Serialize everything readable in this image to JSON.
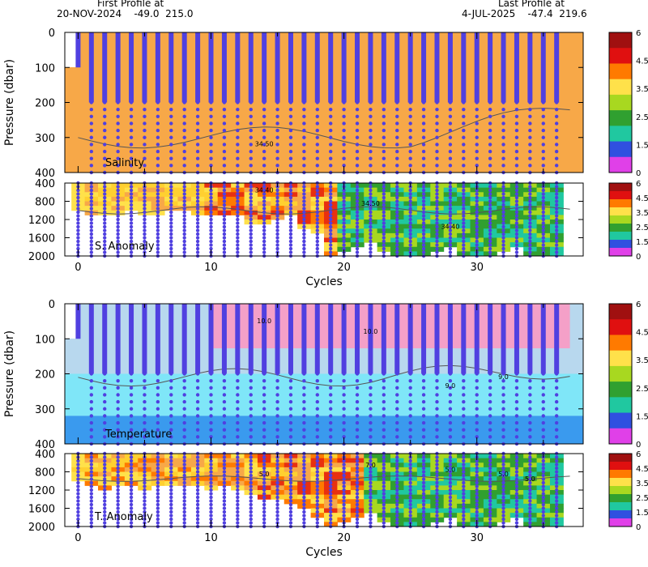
{
  "header": {
    "first_label": "First Profile at",
    "first_value": "20-NOV-2024    -49.0  215.0",
    "last_label": "Last Profile at",
    "last_value": "4-JUL-2025    -47.4  219.6"
  },
  "colors": {
    "salinity_fill": "#f7a848",
    "temp_surface": "#f4a0c8",
    "temp_mid": "#b8d8ee",
    "temp_deep": "#7fe6f8",
    "temp_bottom": "#3a9aee",
    "profile_dots": "#5040e0",
    "contour": "#555555"
  },
  "colorbar": {
    "tick_labels": [
      "6",
      "4.5",
      "3.5",
      "2.5",
      "1.5",
      "0"
    ],
    "colors": [
      "#a01010",
      "#e01010",
      "#ff7a00",
      "#ffe14a",
      "#a8d820",
      "#30a030",
      "#20c8a0",
      "#3050e0",
      "#e040e8"
    ]
  },
  "chart_data": [
    {
      "type": "heatmap",
      "name": "salinity-panel",
      "label": "Salinity",
      "ylabel": "Pressure (dbar)",
      "y_ticks": [
        0,
        100,
        200,
        300,
        400
      ],
      "ylim": [
        400,
        0
      ],
      "xlim": [
        -1,
        38
      ],
      "x_ticks": [
        0,
        10,
        20,
        30
      ],
      "contour_labels": [
        "34.50"
      ],
      "cycles": 37
    },
    {
      "type": "heatmap",
      "name": "salinity-anomaly-panel",
      "label": "S. Anomaly",
      "y_ticks": [
        400,
        800,
        1200,
        1600,
        2000
      ],
      "ylim": [
        2000,
        400
      ],
      "xlim": [
        -1,
        38
      ],
      "contour_labels": [
        "34.40",
        "34.50",
        "34.40"
      ],
      "xlabel": "Cycles",
      "x_tick_labels": [
        "0",
        "10",
        "20",
        "30"
      ]
    },
    {
      "type": "heatmap",
      "name": "temperature-panel",
      "label": "Temperature",
      "ylabel": "Pressure (dbar)",
      "y_ticks": [
        0,
        100,
        200,
        300,
        400
      ],
      "ylim": [
        400,
        0
      ],
      "xlim": [
        -1,
        38
      ],
      "contour_labels": [
        "10.0",
        "10.0",
        "9.0",
        "9.0"
      ]
    },
    {
      "type": "heatmap",
      "name": "temperature-anomaly-panel",
      "label": "T. Anomaly",
      "y_ticks": [
        400,
        800,
        1200,
        1600,
        2000
      ],
      "ylim": [
        2000,
        400
      ],
      "xlim": [
        -1,
        38
      ],
      "contour_labels": [
        "5.0",
        "7.0",
        "5.0",
        "5.0",
        "5.0"
      ],
      "xlabel": "Cycles",
      "x_tick_labels": [
        "0",
        "10",
        "20",
        "30"
      ]
    }
  ]
}
